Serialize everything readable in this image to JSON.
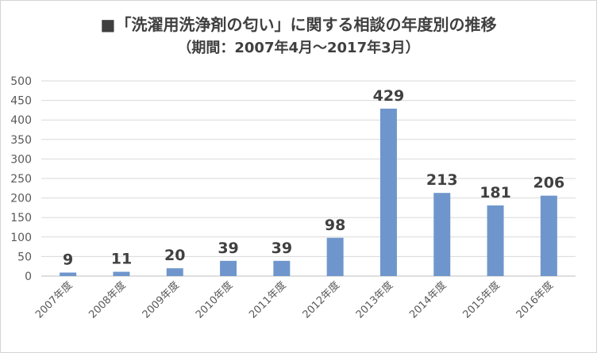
{
  "chart_data": {
    "type": "bar",
    "title": "■「洗濯用洗浄剤の匂い」に関する相談の年度別の推移",
    "subtitle": "（期間：2007年4月～2017年3月）",
    "categories": [
      "2007年度",
      "2008年度",
      "2009年度",
      "2010年度",
      "2011年度",
      "2012年度",
      "2013年度",
      "2014年度",
      "2015年度",
      "2016年度"
    ],
    "values": [
      9,
      11,
      20,
      39,
      39,
      98,
      429,
      213,
      181,
      206
    ],
    "data_labels": [
      "9",
      "11",
      "20",
      "39",
      "39",
      "98",
      "429",
      "213",
      "181",
      "206"
    ],
    "ylim": [
      0,
      500
    ],
    "yticks": [
      0,
      50,
      100,
      150,
      200,
      250,
      300,
      350,
      400,
      450,
      500
    ],
    "ytick_labels": [
      "0",
      "50",
      "100",
      "150",
      "200",
      "250",
      "300",
      "350",
      "400",
      "450",
      "500"
    ],
    "xlabel": "",
    "ylabel": "",
    "grid": true,
    "legend": "none",
    "colors": {
      "bar": "#6f96cc",
      "grid": "#d9d9d9",
      "axis": "#bfbfbf"
    }
  }
}
